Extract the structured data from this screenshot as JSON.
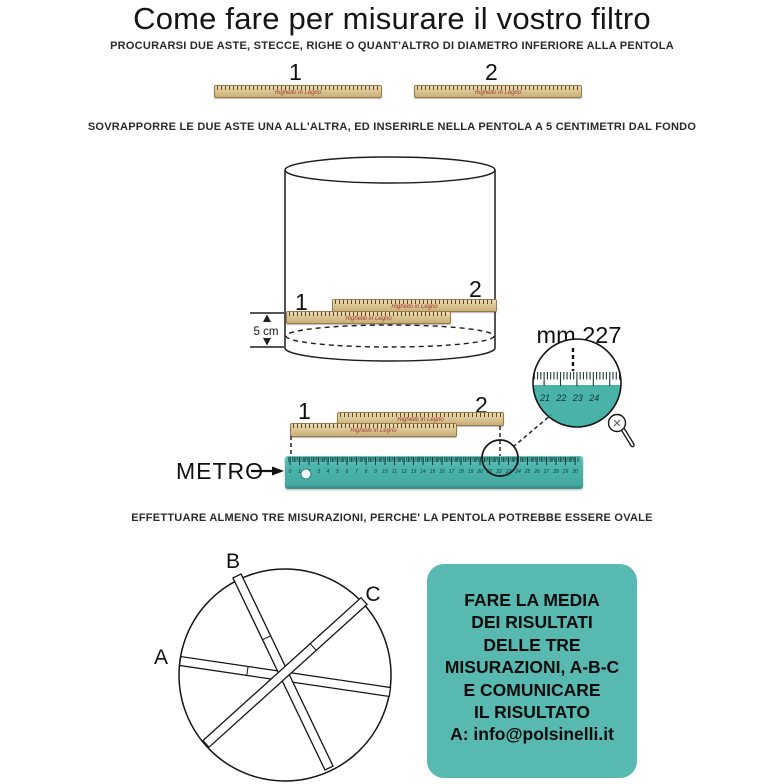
{
  "title": "Come fare per misurare il vostro filtro",
  "steps": {
    "step1": "PROCURARSI DUE ASTE, STECCE, RIGHE O QUANT'ALTRO DI DIAMETRO INFERIORE ALLA PENTOLA",
    "step2": "SOVRAPPORRE LE DUE ASTE UNA ALL'ALTRA, ED INSERIRLE NELLA PENTOLA A 5 CENTIMETRI DAL FONDO",
    "step3": "EFFETTUARE ALMENO TRE MISURAZIONI, PERCHE' LA PENTOLA POTREBBE ESSERE OVALE"
  },
  "rulers": {
    "one": "1",
    "two": "2",
    "brand": "Righello in Legno"
  },
  "pot": {
    "depth": "5 cm"
  },
  "magnifier": {
    "reading": "mm 227",
    "tick_labels": [
      "21",
      "22",
      "23",
      "24"
    ]
  },
  "metro": {
    "label": "METRO",
    "scale_start": 0,
    "scale_end": 30
  },
  "oval": {
    "a": "A",
    "b": "B",
    "c": "C"
  },
  "result_box": {
    "lines": [
      "FARE LA MEDIA",
      "DEI RISULTATI",
      "DELLE TRE",
      "MISURAZIONI, A-B-C",
      "E COMUNICARE",
      "IL RISULTATO",
      "A: info@polsinelli.it"
    ]
  },
  "colors": {
    "teal_box": "#58b9b1",
    "teal_ruler": "#4db5ac",
    "wood": "#dcc795",
    "ink": "#1a1a1a"
  }
}
